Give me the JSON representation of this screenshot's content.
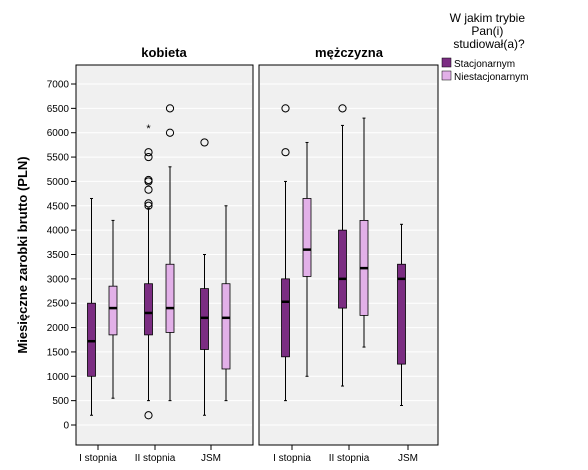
{
  "chart_data": {
    "type": "boxplot",
    "ylabel": "Miesięczne zarobki brutto (PLN)",
    "ylim": [
      -200,
      7350
    ],
    "yticks": [
      0,
      500,
      1000,
      1500,
      2000,
      2500,
      3000,
      3500,
      4000,
      4500,
      5000,
      5500,
      6000,
      6500,
      7000
    ],
    "categories": [
      "I stopnia",
      "II stopnia",
      "JSM"
    ],
    "grid": true,
    "legend": {
      "title": "W jakim trybie Pan(i) studiował(a)?",
      "position": "top-right",
      "entries": [
        {
          "name": "Stacjonarnym",
          "color": "#7b2d82"
        },
        {
          "name": "Niestacjonarnym",
          "color": "#e2b0e8"
        }
      ]
    },
    "facets": [
      {
        "title": "kobieta",
        "groups": [
          {
            "category": "I stopnia",
            "series": "Stacjonarnym",
            "min": 200,
            "q1": 1000,
            "median": 1720,
            "q3": 2500,
            "max": 4650,
            "outliers": [],
            "extremes": []
          },
          {
            "category": "I stopnia",
            "series": "Niestacjonarnym",
            "min": 550,
            "q1": 1850,
            "median": 2400,
            "q3": 2850,
            "max": 4200,
            "outliers": [],
            "extremes": []
          },
          {
            "category": "II stopnia",
            "series": "Stacjonarnym",
            "min": 500,
            "q1": 1850,
            "median": 2300,
            "q3": 2900,
            "max": 4450,
            "outliers": [
              200,
              4500,
              4550,
              4830,
              5000,
              5030,
              5500,
              5600
            ],
            "extremes": [
              6100
            ]
          },
          {
            "category": "II stopnia",
            "series": "Niestacjonarnym",
            "min": 500,
            "q1": 1900,
            "median": 2400,
            "q3": 3300,
            "max": 5300,
            "outliers": [
              6000,
              6500
            ],
            "extremes": []
          },
          {
            "category": "JSM",
            "series": "Stacjonarnym",
            "min": 200,
            "q1": 1550,
            "median": 2200,
            "q3": 2800,
            "max": 3500,
            "outliers": [
              5800
            ],
            "extremes": []
          },
          {
            "category": "JSM",
            "series": "Niestacjonarnym",
            "min": 500,
            "q1": 1150,
            "median": 2200,
            "q3": 2900,
            "max": 4500,
            "outliers": [],
            "extremes": []
          }
        ]
      },
      {
        "title": "mężczyzna",
        "groups": [
          {
            "category": "I stopnia",
            "series": "Stacjonarnym",
            "min": 500,
            "q1": 1400,
            "median": 2530,
            "q3": 3000,
            "max": 5000,
            "outliers": [
              5600,
              6500
            ],
            "extremes": []
          },
          {
            "category": "I stopnia",
            "series": "Niestacjonarnym",
            "min": 1000,
            "q1": 3050,
            "median": 3600,
            "q3": 4650,
            "max": 5800,
            "outliers": [],
            "extremes": []
          },
          {
            "category": "II stopnia",
            "series": "Stacjonarnym",
            "min": 800,
            "q1": 2400,
            "median": 3000,
            "q3": 4000,
            "max": 6150,
            "outliers": [
              6500
            ],
            "extremes": []
          },
          {
            "category": "II stopnia",
            "series": "Niestacjonarnym",
            "min": 1600,
            "q1": 2250,
            "median": 3220,
            "q3": 4200,
            "max": 6300,
            "outliers": [],
            "extremes": []
          },
          {
            "category": "JSM",
            "series": "Stacjonarnym",
            "min": 400,
            "q1": 1250,
            "median": 3000,
            "q3": 3300,
            "max": 4120,
            "outliers": [],
            "extremes": []
          }
        ]
      }
    ]
  }
}
